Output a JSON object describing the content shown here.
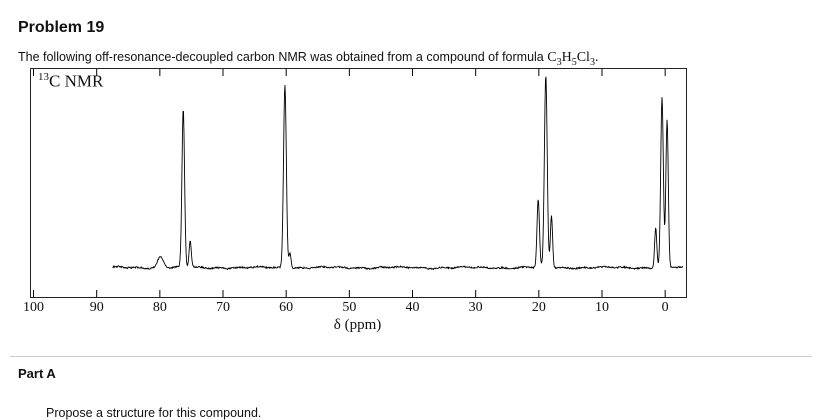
{
  "page": {
    "title": "Problem 19",
    "intro_prefix": "The following off-resonance-decoupled carbon NMR was obtained from a compound of formula ",
    "formula": {
      "c": "C",
      "c_sub": "3",
      "h": "H",
      "h_sub": "5",
      "cl": "Cl",
      "cl_sub": "3",
      "suffix": "."
    },
    "part_a_label": "Part A",
    "part_a_question": "Propose a structure for this compound."
  },
  "chart_data": {
    "type": "line",
    "label_sup": "13",
    "label_text": "C NMR",
    "xlabel": "δ (ppm)",
    "x_ticks": [
      100,
      90,
      80,
      70,
      60,
      50,
      40,
      30,
      20,
      10,
      0
    ],
    "x_range_ppm": [
      100.4,
      -3.3
    ],
    "x_axis_reversed": true,
    "trace_ppm_span": [
      87.5,
      -2.9
    ],
    "peaks": [
      {
        "ppm": 79.9,
        "intensity": 11,
        "width": 3.0
      },
      {
        "ppm": 76.3,
        "intensity": 158,
        "width": 1.3
      },
      {
        "ppm": 75.2,
        "intensity": 27,
        "width": 1.1
      },
      {
        "ppm": 60.2,
        "intensity": 183,
        "width": 1.4
      },
      {
        "ppm": 59.4,
        "intensity": 16,
        "width": 1.0
      },
      {
        "ppm": 20.1,
        "intensity": 68,
        "width": 1.2
      },
      {
        "ppm": 18.9,
        "intensity": 192,
        "width": 1.4
      },
      {
        "ppm": 18.0,
        "intensity": 52,
        "width": 1.1
      },
      {
        "ppm": 1.5,
        "intensity": 40,
        "width": 1.1
      },
      {
        "ppm": 0.5,
        "intensity": 170,
        "width": 1.3
      },
      {
        "ppm": -0.3,
        "intensity": 148,
        "width": 1.2
      }
    ],
    "colors": {
      "trace": "#000000",
      "axis": "#000000",
      "divider": "#cccccc"
    }
  }
}
